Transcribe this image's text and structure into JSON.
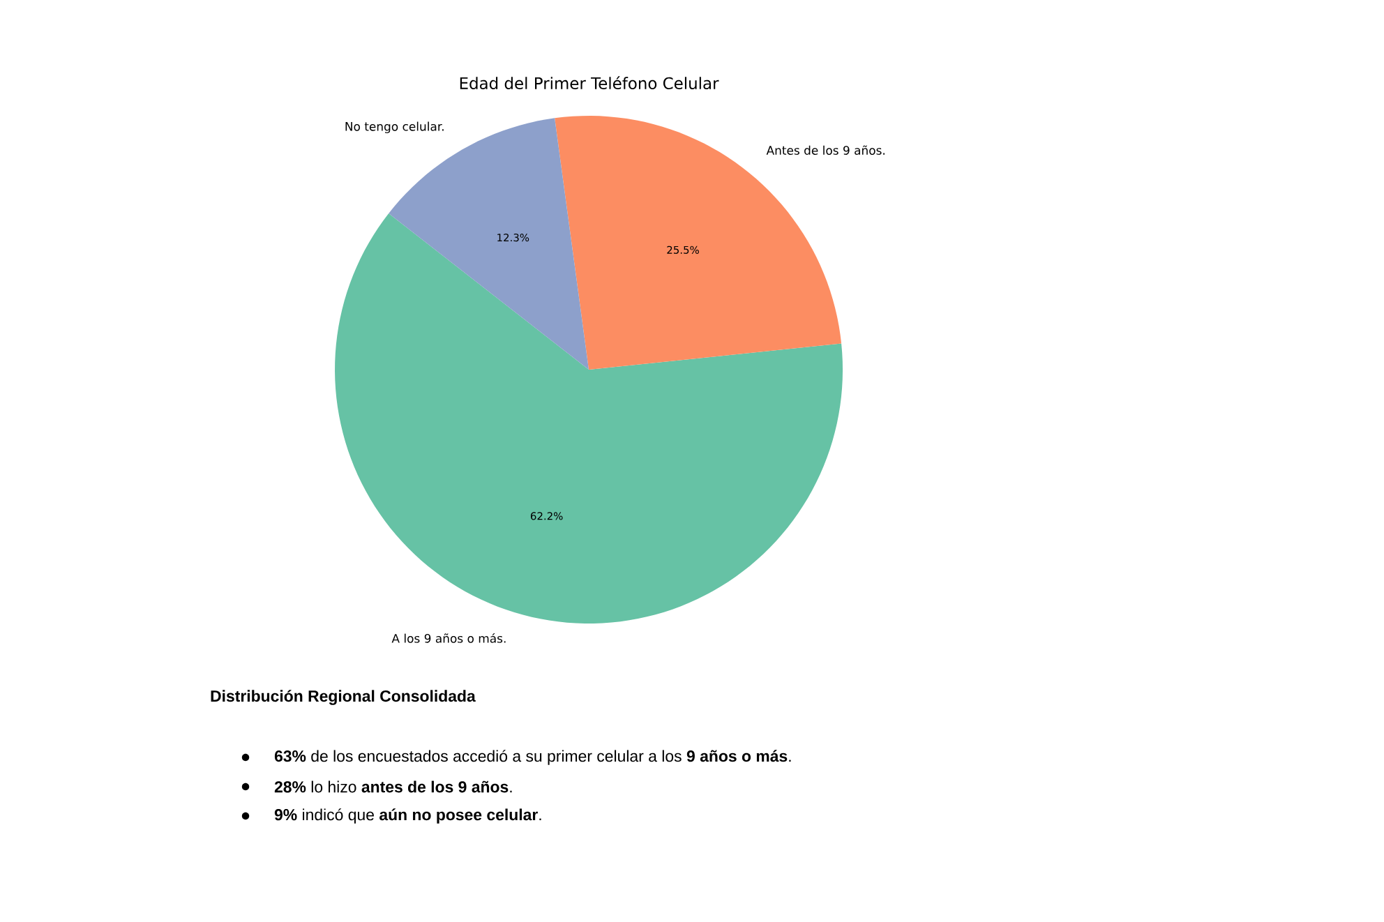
{
  "chart_data": {
    "type": "pie",
    "title": "Edad del Primer Teléfono Celular",
    "categories": [
      "A los 9 años o más.",
      "Antes de los 9 años.",
      "No tengo celular."
    ],
    "values": [
      62.2,
      25.5,
      12.3
    ],
    "colors": [
      "#66c2a5",
      "#fc8d62",
      "#8da0cb"
    ],
    "value_labels": [
      "62.2%",
      "25.5%",
      "12.3%"
    ],
    "annotations": [
      "Distribución Regional Consolidada",
      "**63%** de los encuestados accedió a su primer celular a los **9 años o más**.",
      "**28%** lo hizo **antes de los 9 años**.",
      "**9%** indicó que **aún no posee celular**."
    ]
  }
}
